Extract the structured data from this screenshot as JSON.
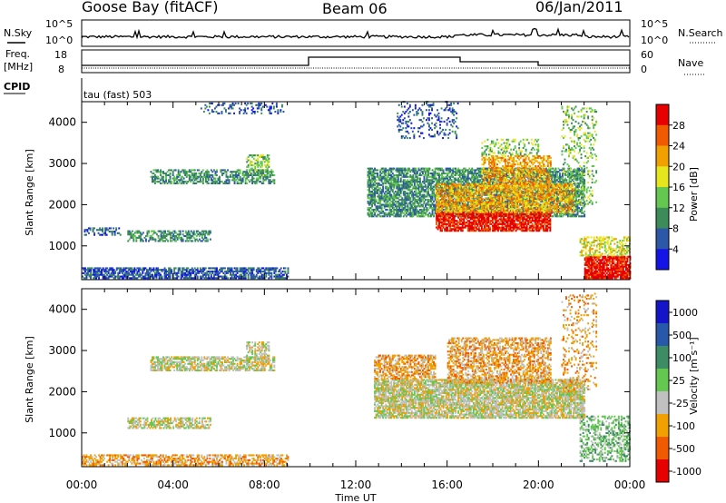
{
  "header": {
    "station": "Goose Bay (fitACF)",
    "beam": "Beam 06",
    "date": "06/Jan/2011"
  },
  "info_rows": {
    "nsky_label": "N.Sky",
    "nsky_ticks": [
      "10^5",
      "10^0"
    ],
    "nsearch_label": "N.Search",
    "nsearch_ticks": [
      "10^5",
      "10^0"
    ],
    "freq_label": [
      "Freq.",
      "[MHz]"
    ],
    "freq_ticks": [
      "18",
      "8"
    ],
    "nave_label": "Nave",
    "nave_ticks": [
      "60",
      "0"
    ],
    "cpid_label": "CPID",
    "cpid_text": "tau (fast) 503"
  },
  "colors": {
    "power_scale": [
      "#1414e6",
      "#2d58a8",
      "#3c8c5a",
      "#64c850",
      "#e6e61e",
      "#f0a000",
      "#f05a00",
      "#e60000"
    ],
    "velocity_scale": [
      "#1414c8",
      "#2858aa",
      "#3c8c64",
      "#64c850",
      "#c0c0c0",
      "#f0a000",
      "#f05a00",
      "#e60000"
    ],
    "ground_scatter": "#bebebe"
  },
  "chart_data": [
    {
      "type": "heatmap",
      "name": "power",
      "ylabel": "Slant Range [km]",
      "yticks": [
        "1000",
        "2000",
        "3000",
        "4000"
      ],
      "ylim": [
        180,
        4500
      ],
      "xlim": [
        0,
        24
      ],
      "colorbar_label": "Power [dB]",
      "colorbar_ticks": [
        "4",
        "8",
        "12",
        "16",
        "20",
        "24",
        "28"
      ],
      "regions": [
        {
          "t": [
            0.0,
            9.0
          ],
          "r": [
            200,
            450
          ],
          "level": 1,
          "density": 0.7
        },
        {
          "t": [
            0.1,
            1.7
          ],
          "r": [
            1250,
            1450
          ],
          "level": 1,
          "density": 0.45
        },
        {
          "t": [
            2.0,
            5.6
          ],
          "r": [
            1100,
            1350
          ],
          "level": 2,
          "density": 0.55
        },
        {
          "t": [
            3.0,
            8.4
          ],
          "r": [
            2500,
            2850
          ],
          "level": 2,
          "density": 0.55
        },
        {
          "t": [
            7.2,
            8.2
          ],
          "r": [
            2700,
            3200
          ],
          "level": 3,
          "density": 0.5
        },
        {
          "t": [
            5.2,
            8.8
          ],
          "r": [
            4200,
            4450
          ],
          "level": 1,
          "density": 0.25
        },
        {
          "t": [
            12.5,
            22.0
          ],
          "r": [
            1700,
            2900
          ],
          "level": 2,
          "density": 0.7
        },
        {
          "t": [
            15.5,
            20.5
          ],
          "r": [
            1350,
            1800
          ],
          "level": 7,
          "density": 0.8
        },
        {
          "t": [
            15.5,
            21.5
          ],
          "r": [
            1800,
            2500
          ],
          "level": 5,
          "density": 0.6
        },
        {
          "t": [
            17.5,
            20.5
          ],
          "r": [
            2400,
            3200
          ],
          "level": 5,
          "density": 0.55
        },
        {
          "t": [
            17.5,
            20.0
          ],
          "r": [
            3200,
            3600
          ],
          "level": 3,
          "density": 0.3
        },
        {
          "t": [
            22.0,
            24.0
          ],
          "r": [
            200,
            750
          ],
          "level": 7,
          "density": 0.85
        },
        {
          "t": [
            21.8,
            24.0
          ],
          "r": [
            750,
            1200
          ],
          "level": 4,
          "density": 0.45
        },
        {
          "t": [
            13.8,
            16.5
          ],
          "r": [
            3600,
            4500
          ],
          "level": 1,
          "density": 0.2
        },
        {
          "t": [
            21.0,
            22.5
          ],
          "r": [
            2000,
            4400
          ],
          "level": 3,
          "density": 0.2
        }
      ]
    },
    {
      "type": "heatmap",
      "name": "velocity",
      "ylabel": "Slant Range [km]",
      "yticks": [
        "1000",
        "2000",
        "3000",
        "4000"
      ],
      "ylim": [
        180,
        4500
      ],
      "xlim": [
        0,
        24
      ],
      "xlabel": "Time UT",
      "xticks": [
        "00:00",
        "04:00",
        "08:00",
        "12:00",
        "16:00",
        "20:00",
        "00:00"
      ],
      "colorbar_label": "Velocity [m s⁻¹]",
      "colorbar_ticks": [
        "1000",
        "500",
        "100",
        "25",
        "-25",
        "-100",
        "-500",
        "-1000"
      ],
      "regions": [
        {
          "t": [
            0.0,
            9.0
          ],
          "r": [
            200,
            450
          ],
          "level": 5,
          "density": 0.55
        },
        {
          "t": [
            2.0,
            5.6
          ],
          "r": [
            1100,
            1350
          ],
          "level": 4,
          "density": 0.6
        },
        {
          "t": [
            3.0,
            8.4
          ],
          "r": [
            2500,
            2850
          ],
          "level": 4,
          "density": 0.65
        },
        {
          "t": [
            7.2,
            8.2
          ],
          "r": [
            2700,
            3200
          ],
          "level": 4,
          "density": 0.55
        },
        {
          "t": [
            12.8,
            22.0
          ],
          "r": [
            1350,
            2300
          ],
          "level": 4,
          "density": 0.8
        },
        {
          "t": [
            12.8,
            15.5
          ],
          "r": [
            2300,
            2900
          ],
          "level": 5,
          "density": 0.6
        },
        {
          "t": [
            16.0,
            20.5
          ],
          "r": [
            2200,
            3300
          ],
          "level": 5,
          "density": 0.55
        },
        {
          "t": [
            21.8,
            24.0
          ],
          "r": [
            300,
            1400
          ],
          "level": 3,
          "density": 0.45
        },
        {
          "t": [
            21.0,
            22.5
          ],
          "r": [
            2000,
            4400
          ],
          "level": 5,
          "density": 0.2
        }
      ]
    }
  ]
}
